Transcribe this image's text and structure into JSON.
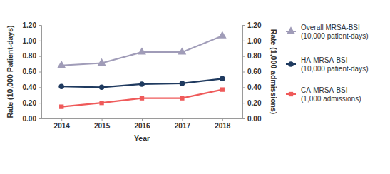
{
  "chart_data": {
    "type": "line",
    "x_label": "Year",
    "y_label": "Rate (10,000 Patient-days)",
    "y2_label": "Rate (1,000 admissions)",
    "categories": [
      "2014",
      "2015",
      "2016",
      "2017",
      "2018"
    ],
    "ylim": [
      0,
      1.2
    ],
    "yticks": [
      {
        "value": 0,
        "label": "0.00"
      },
      {
        "value": 0.2,
        "label": "0.20"
      },
      {
        "value": 0.4,
        "label": "0.40"
      },
      {
        "value": 0.6,
        "label": "0.60"
      },
      {
        "value": 0.8,
        "label": "0.80"
      },
      {
        "value": 1.0,
        "label": "1.00"
      },
      {
        "value": 1.2,
        "label": "1.20"
      }
    ],
    "y2lim": [
      0,
      1.2
    ],
    "y2ticks": [
      {
        "value": 0,
        "label": "0.00"
      },
      {
        "value": 0.2,
        "label": "0.20"
      },
      {
        "value": 0.4,
        "label": "0.40"
      },
      {
        "value": 0.6,
        "label": "0.60"
      },
      {
        "value": 0.8,
        "label": "0.80"
      },
      {
        "value": 1.0,
        "label": "1.00"
      },
      {
        "value": 1.2,
        "label": "1.20"
      }
    ],
    "grid": false,
    "legend": "right",
    "series": [
      {
        "name": "Overall MRSA-BSI (10,000 patient-days)",
        "color": "#a09cb8",
        "marker": "triangle",
        "values": [
          0.68,
          0.71,
          0.85,
          0.85,
          1.06
        ]
      },
      {
        "name": "HA-MRSA-BSI (10,000 patient-days)",
        "color": "#1f3a5f",
        "marker": "circle",
        "values": [
          0.41,
          0.4,
          0.44,
          0.45,
          0.51
        ]
      },
      {
        "name": "CA-MRSA-BSI (1,000 admissions)",
        "color": "#ef5a5a",
        "marker": "square",
        "axis": "y2",
        "values": [
          0.15,
          0.2,
          0.26,
          0.26,
          0.37
        ]
      }
    ]
  }
}
